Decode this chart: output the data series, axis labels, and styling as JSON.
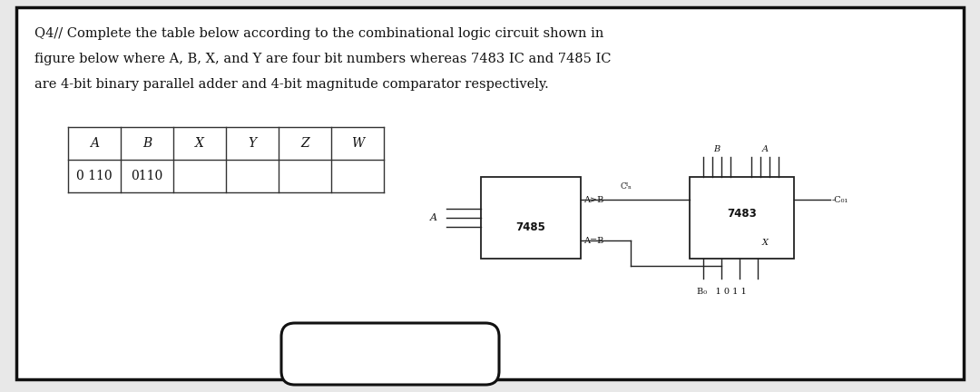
{
  "title_line1": "Q4// Complete the table below according to the combinational logic circuit shown in",
  "title_line2": "figure below where A, B, X, and Y are four bit numbers whereas 7483 IC and 7485 IC",
  "title_line3": "are 4-bit binary parallel adder and 4-bit magnitude comparator respectively.",
  "table_headers": [
    "A",
    "B",
    "X",
    "Y",
    "Z",
    "W"
  ],
  "table_row1": "0 110",
  "table_row2": "0110",
  "ic_7485_label": "7485",
  "ic_7483_label": "7483",
  "bg_color": "#f5f5f5",
  "border_color": "#222222",
  "text_color": "#111111",
  "font_size_title": 10.5,
  "font_size_table": 10,
  "font_size_ic": 8.5,
  "font_size_small": 7.0
}
